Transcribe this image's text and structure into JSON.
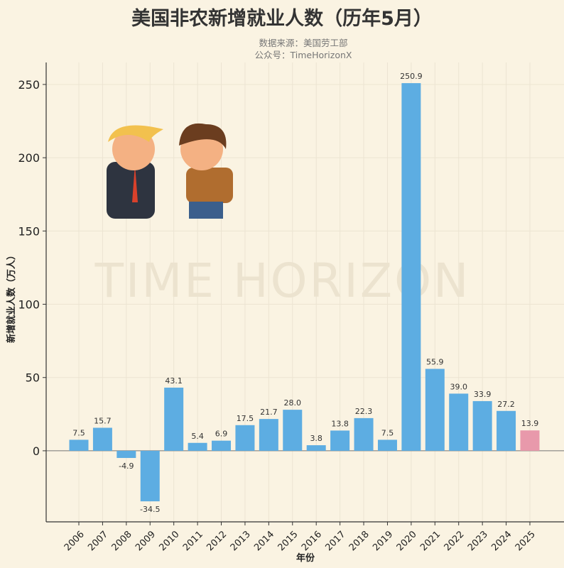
{
  "chart_data": {
    "type": "bar",
    "title": "美国非农新增就业人数（历年5月）",
    "subtitle_lines": [
      "数据来源：美国劳工部",
      "公众号：TimeHorizonX"
    ],
    "xlabel": "年份",
    "ylabel": "新增就业人数（万人）",
    "categories": [
      "2006",
      "2007",
      "2008",
      "2009",
      "2010",
      "2011",
      "2012",
      "2013",
      "2014",
      "2015",
      "2016",
      "2017",
      "2018",
      "2019",
      "2020",
      "2021",
      "2022",
      "2023",
      "2024",
      "2025"
    ],
    "values": [
      7.5,
      15.7,
      -4.9,
      -34.5,
      43.1,
      5.4,
      6.9,
      17.5,
      21.7,
      28.0,
      3.8,
      13.8,
      22.3,
      7.5,
      250.9,
      55.9,
      39.0,
      33.9,
      27.2,
      13.9
    ],
    "data_labels": [
      "7.5",
      "15.7",
      "-4.9",
      "-34.5",
      "43.1",
      "5.4",
      "6.9",
      "17.5",
      "21.7",
      "28.0",
      "3.8",
      "13.8",
      "22.3",
      "7.5",
      "250.9",
      "55.9",
      "39.0",
      "33.9",
      "27.2",
      "13.9"
    ],
    "yticks": [
      0,
      50,
      100,
      150,
      200,
      250
    ],
    "ylim": [
      -48.5,
      265
    ],
    "grid": true,
    "colors": {
      "bar": "#5dade2",
      "highlight": "#e899ab",
      "background": "#faf3e2"
    },
    "highlight_category": "2025",
    "watermark": "TIME HORIZON",
    "illustration": "cartoon-two-men-pointing"
  }
}
